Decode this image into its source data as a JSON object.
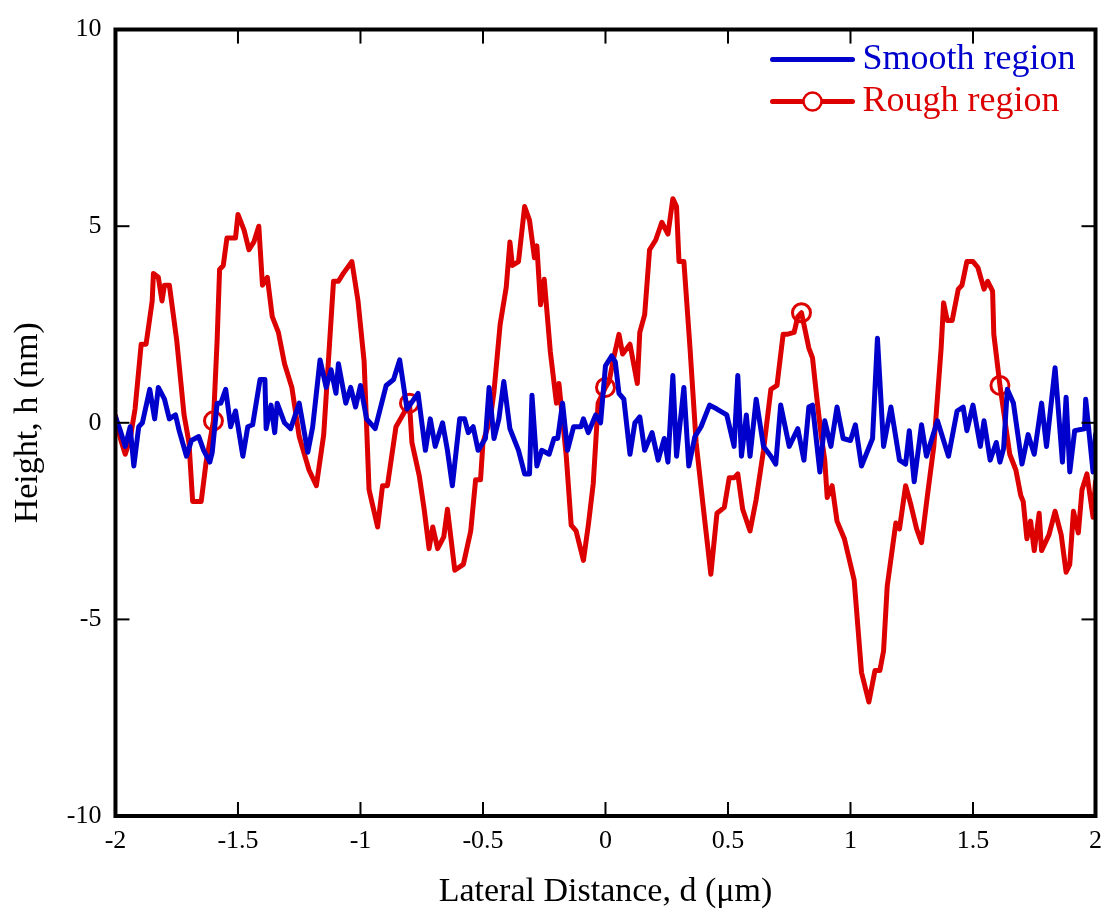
{
  "chart_data": {
    "type": "line",
    "xlabel": "Lateral Distance, d (μm)",
    "ylabel": "Height, h (nm)",
    "xlim": [
      -2,
      2
    ],
    "xticks": [
      -2,
      -1.5,
      -1,
      -0.5,
      0,
      0.5,
      1,
      1.5,
      2
    ],
    "ylim": [
      -10,
      10
    ],
    "yticks": [
      -10,
      -5,
      0,
      5,
      10
    ],
    "legend": "top right",
    "series": [
      {
        "name": "Smooth region",
        "color": "#0000cc",
        "x": [
          -2.0,
          -1.98,
          -1.96,
          -1.94,
          -1.925,
          -1.905,
          -1.89,
          -1.86,
          -1.84,
          -1.825,
          -1.8,
          -1.78,
          -1.755,
          -1.74,
          -1.71,
          -1.69,
          -1.66,
          -1.64,
          -1.615,
          -1.605,
          -1.585,
          -1.57,
          -1.55,
          -1.53,
          -1.51,
          -1.48,
          -1.46,
          -1.44,
          -1.41,
          -1.39,
          -1.385,
          -1.365,
          -1.35,
          -1.34,
          -1.31,
          -1.285,
          -1.25,
          -1.215,
          -1.195,
          -1.165,
          -1.14,
          -1.12,
          -1.1,
          -1.09,
          -1.06,
          -1.04,
          -1.02,
          -1.0,
          -0.975,
          -0.94,
          -0.895,
          -0.865,
          -0.84,
          -0.81,
          -0.765,
          -0.735,
          -0.715,
          -0.695,
          -0.665,
          -0.645,
          -0.625,
          -0.595,
          -0.575,
          -0.56,
          -0.54,
          -0.52,
          -0.49,
          -0.475,
          -0.455,
          -0.435,
          -0.415,
          -0.39,
          -0.355,
          -0.33,
          -0.31,
          -0.3,
          -0.28,
          -0.26,
          -0.23,
          -0.21,
          -0.195,
          -0.175,
          -0.155,
          -0.13,
          -0.1,
          -0.09,
          -0.07,
          -0.04,
          -0.02,
          0.0,
          0.025,
          0.04,
          0.055,
          0.075,
          0.1,
          0.12,
          0.14,
          0.16,
          0.19,
          0.215,
          0.24,
          0.255,
          0.275,
          0.29,
          0.32,
          0.34,
          0.365,
          0.39,
          0.425,
          0.455,
          0.495,
          0.525,
          0.54,
          0.555,
          0.575,
          0.59,
          0.615,
          0.645,
          0.675,
          0.695,
          0.715,
          0.75,
          0.785,
          0.81,
          0.83,
          0.845,
          0.875,
          0.895,
          0.92,
          0.945,
          0.97,
          1.0,
          1.02,
          1.045,
          1.09,
          1.11,
          1.135,
          1.165,
          1.2,
          1.225,
          1.24,
          1.26,
          1.29,
          1.31,
          1.355,
          1.4,
          1.435,
          1.46,
          1.475,
          1.5,
          1.53,
          1.545,
          1.57,
          1.595,
          1.61,
          1.625,
          1.64,
          1.665,
          1.7,
          1.725,
          1.75,
          1.78,
          1.8,
          1.835,
          1.865,
          1.88,
          1.895,
          1.915,
          1.955,
          1.96,
          1.99,
          2.0
        ],
        "values": [
          0.15,
          -0.2,
          -0.6,
          -0.1,
          -1.1,
          -0.1,
          0,
          0.85,
          0.1,
          0.9,
          0.6,
          0.1,
          0.2,
          -0.2,
          -0.85,
          -0.45,
          -0.35,
          -0.7,
          -1.0,
          -0.75,
          0.5,
          0.5,
          0.85,
          -0.1,
          0.3,
          -0.85,
          -0.1,
          -0.05,
          1.1,
          1.1,
          -0.15,
          0.45,
          -0.25,
          0.5,
          0,
          -0.15,
          0.5,
          -0.75,
          -0.1,
          1.6,
          0.9,
          1.35,
          0.75,
          1.5,
          0.5,
          0.9,
          0.4,
          0.95,
          0.1,
          -0.15,
          0.95,
          1.1,
          1.6,
          0.35,
          0.75,
          -0.7,
          0.1,
          -0.6,
          0,
          -0.7,
          -1.6,
          0.1,
          0.1,
          -0.25,
          -0.1,
          -0.7,
          -0.4,
          0.9,
          -0.4,
          0.1,
          1.05,
          -0.15,
          -0.7,
          -1.3,
          -1.3,
          0.7,
          -1.1,
          -0.7,
          -0.8,
          -0.4,
          -0.4,
          0.5,
          -0.7,
          -0.1,
          -0.1,
          0.1,
          -0.25,
          0.2,
          0,
          1.45,
          1.7,
          1.55,
          0.75,
          0.6,
          -0.8,
          0,
          0.15,
          -0.7,
          -0.25,
          -0.95,
          -0.4,
          -1.0,
          1.2,
          -0.85,
          0.9,
          -1.1,
          -0.35,
          -0.1,
          0.45,
          0.35,
          0.2,
          -0.6,
          1.2,
          -0.85,
          0.2,
          -0.85,
          0.6,
          -0.6,
          -0.85,
          -1.05,
          0.45,
          -0.6,
          -0.15,
          -0.95,
          0.4,
          0.45,
          -1.25,
          0.05,
          -0.6,
          0.4,
          -0.4,
          -0.45,
          -0.05,
          -1.1,
          -0.4,
          2.15,
          -0.6,
          0.4,
          -0.95,
          -1.05,
          -0.2,
          -1.5,
          -0.05,
          -0.85,
          0.05,
          -0.85,
          0.3,
          0.4,
          -0.2,
          0.45,
          -0.6,
          0.05,
          -0.95,
          -0.5,
          -1.0,
          -0.65,
          0.85,
          0.5,
          -1.05,
          -0.3,
          -0.8,
          0.5,
          -0.6,
          1.4,
          -1.0,
          0.65,
          -1.25,
          -0.2,
          -0.15,
          0.6,
          -1.25,
          -0.3
        ]
      },
      {
        "name": "Rough region",
        "color": "#dd0000",
        "x": [
          -2.0,
          -1.98,
          -1.96,
          -1.94,
          -1.92,
          -1.895,
          -1.875,
          -1.85,
          -1.845,
          -1.825,
          -1.81,
          -1.8,
          -1.78,
          -1.75,
          -1.72,
          -1.7,
          -1.685,
          -1.65,
          -1.63,
          -1.6,
          -1.585,
          -1.575,
          -1.56,
          -1.545,
          -1.51,
          -1.5,
          -1.475,
          -1.455,
          -1.435,
          -1.415,
          -1.4,
          -1.38,
          -1.36,
          -1.335,
          -1.31,
          -1.28,
          -1.25,
          -1.21,
          -1.18,
          -1.15,
          -1.11,
          -1.09,
          -1.07,
          -1.035,
          -1.01,
          -0.985,
          -0.965,
          -0.93,
          -0.91,
          -0.89,
          -0.855,
          -0.8,
          -0.79,
          -0.76,
          -0.74,
          -0.72,
          -0.705,
          -0.685,
          -0.66,
          -0.645,
          -0.615,
          -0.58,
          -0.55,
          -0.53,
          -0.51,
          -0.5,
          -0.47,
          -0.455,
          -0.43,
          -0.405,
          -0.39,
          -0.38,
          -0.355,
          -0.33,
          -0.31,
          -0.29,
          -0.28,
          -0.265,
          -0.25,
          -0.225,
          -0.2,
          -0.19,
          -0.16,
          -0.14,
          -0.12,
          -0.09,
          -0.07,
          -0.05,
          -0.03,
          0.0,
          0.015,
          0.03,
          0.055,
          0.07,
          0.1,
          0.13,
          0.14,
          0.16,
          0.18,
          0.205,
          0.23,
          0.255,
          0.275,
          0.29,
          0.3,
          0.32,
          0.345,
          0.37,
          0.4,
          0.43,
          0.455,
          0.485,
          0.505,
          0.525,
          0.54,
          0.56,
          0.59,
          0.615,
          0.645,
          0.675,
          0.7,
          0.725,
          0.74,
          0.77,
          0.785,
          0.8,
          0.81,
          0.83,
          0.845,
          0.865,
          0.88,
          0.895,
          0.905,
          0.925,
          0.945,
          0.975,
          1.015,
          1.045,
          1.075,
          1.1,
          1.12,
          1.135,
          1.15,
          1.185,
          1.2,
          1.225,
          1.245,
          1.27,
          1.29,
          1.315,
          1.34,
          1.37,
          1.38,
          1.395,
          1.415,
          1.44,
          1.455,
          1.475,
          1.5,
          1.52,
          1.545,
          1.56,
          1.58,
          1.585,
          1.61,
          1.65,
          1.675,
          1.695,
          1.705,
          1.72,
          1.735,
          1.75,
          1.77,
          1.78,
          1.81,
          1.835,
          1.86,
          1.88,
          1.895,
          1.91,
          1.93,
          1.945,
          1.965,
          1.99,
          2.0
        ],
        "values": [
          0.18,
          -0.4,
          -0.8,
          -0.4,
          0.35,
          2.0,
          2.0,
          3.1,
          3.8,
          3.7,
          3.1,
          3.5,
          3.5,
          2.1,
          0.2,
          -0.5,
          -2.0,
          -2.0,
          -1.0,
          0.05,
          2.1,
          3.9,
          4.0,
          4.7,
          4.7,
          5.3,
          4.9,
          4.4,
          4.6,
          5.0,
          3.5,
          3.7,
          2.7,
          2.3,
          1.5,
          0.9,
          -0.35,
          -1.2,
          -1.6,
          -0.3,
          3.6,
          3.6,
          3.8,
          4.1,
          3.1,
          1.55,
          -1.7,
          -2.65,
          -1.6,
          -1.6,
          -0.1,
          0.5,
          -0.5,
          -1.35,
          -2.2,
          -3.2,
          -2.65,
          -3.2,
          -2.9,
          -2.2,
          -3.75,
          -3.6,
          -2.75,
          -1.45,
          -1.45,
          -0.5,
          0.1,
          0.8,
          2.5,
          3.45,
          4.6,
          4.0,
          4.1,
          5.5,
          5.15,
          4.2,
          4.5,
          3.0,
          3.65,
          1.8,
          0.5,
          1.0,
          -0.85,
          -2.6,
          -2.75,
          -3.5,
          -2.6,
          -1.55,
          0.5,
          0.9,
          1.05,
          1.55,
          2.25,
          1.75,
          2.0,
          1.0,
          2.3,
          2.75,
          4.4,
          4.65,
          5.1,
          4.8,
          5.7,
          5.5,
          4.1,
          4.1,
          1.9,
          -0.5,
          -2.2,
          -3.85,
          -2.3,
          -2.15,
          -1.4,
          -1.4,
          -1.3,
          -2.2,
          -2.75,
          -1.95,
          -0.7,
          0.85,
          0.95,
          2.25,
          2.25,
          2.3,
          2.7,
          2.8,
          2.5,
          1.9,
          1.65,
          0.5,
          -0.3,
          -0.95,
          -1.9,
          -1.6,
          -2.5,
          -2.95,
          -4.0,
          -6.35,
          -7.1,
          -6.3,
          -6.3,
          -5.8,
          -4.15,
          -2.55,
          -2.7,
          -1.6,
          -2.05,
          -2.7,
          -3.05,
          -1.8,
          -0.6,
          1.9,
          3.05,
          2.6,
          2.6,
          3.4,
          3.5,
          4.1,
          4.1,
          3.95,
          3.4,
          3.6,
          3.35,
          2.25,
          0.95,
          -0.8,
          -1.2,
          -1.85,
          -2.0,
          -2.95,
          -2.5,
          -3.25,
          -2.3,
          -3.25,
          -2.85,
          -2.25,
          -2.85,
          -3.8,
          -3.6,
          -2.25,
          -2.8,
          -1.7,
          -1.3,
          -2.4,
          -1.5
        ]
      },
      {
        "type": "scatter",
        "color": "#dd0000",
        "marker": "circle",
        "x": [
          -1.6,
          -0.8,
          0.0,
          0.8,
          1.61
        ],
        "values": [
          0.05,
          0.5,
          0.9,
          2.8,
          0.95
        ]
      }
    ]
  }
}
